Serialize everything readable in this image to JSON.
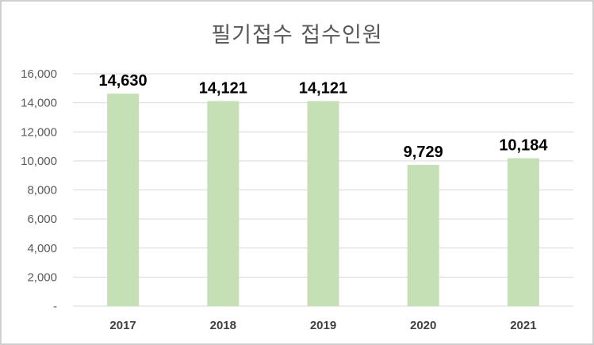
{
  "chart_data": {
    "type": "bar",
    "title": "필기접수 접수인원",
    "xlabel": "",
    "ylabel": "",
    "categories": [
      "2017",
      "2018",
      "2019",
      "2020",
      "2021"
    ],
    "values": [
      14630,
      14121,
      14121,
      9729,
      10184
    ],
    "data_labels": [
      "14,630",
      "14,121",
      "14,121",
      "9,729",
      "10,184"
    ],
    "ylim": [
      0,
      16000
    ],
    "yticks": [
      0,
      2000,
      4000,
      6000,
      8000,
      10000,
      12000,
      14000,
      16000
    ],
    "ytick_labels": [
      "-",
      "2,000",
      "4,000",
      "6,000",
      "8,000",
      "10,000",
      "12,000",
      "14,000",
      "16,000"
    ],
    "grid": true,
    "legend": "none",
    "bar_color": "#c5e0b4"
  }
}
